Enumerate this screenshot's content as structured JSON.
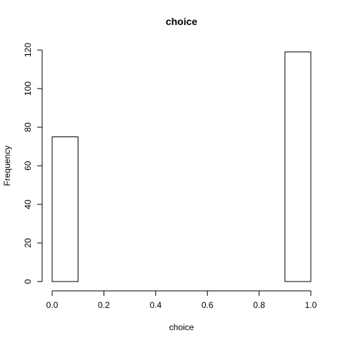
{
  "chart_data": {
    "type": "bar",
    "title": "choice",
    "xlabel": "choice",
    "ylabel": "Frequency",
    "xlim": [
      0.0,
      1.0
    ],
    "ylim": [
      0,
      120
    ],
    "x_ticks": [
      "0.0",
      "0.2",
      "0.4",
      "0.6",
      "0.8",
      "1.0"
    ],
    "y_ticks": [
      "0",
      "20",
      "40",
      "60",
      "80",
      "100",
      "120"
    ],
    "bins": [
      {
        "start": 0.0,
        "end": 0.1,
        "count": 75
      },
      {
        "start": 0.1,
        "end": 0.2,
        "count": 0
      },
      {
        "start": 0.2,
        "end": 0.3,
        "count": 0
      },
      {
        "start": 0.3,
        "end": 0.4,
        "count": 0
      },
      {
        "start": 0.4,
        "end": 0.5,
        "count": 0
      },
      {
        "start": 0.5,
        "end": 0.6,
        "count": 0
      },
      {
        "start": 0.6,
        "end": 0.7,
        "count": 0
      },
      {
        "start": 0.7,
        "end": 0.8,
        "count": 0
      },
      {
        "start": 0.8,
        "end": 0.9,
        "count": 0
      },
      {
        "start": 0.9,
        "end": 1.0,
        "count": 119
      }
    ],
    "grid": false
  }
}
